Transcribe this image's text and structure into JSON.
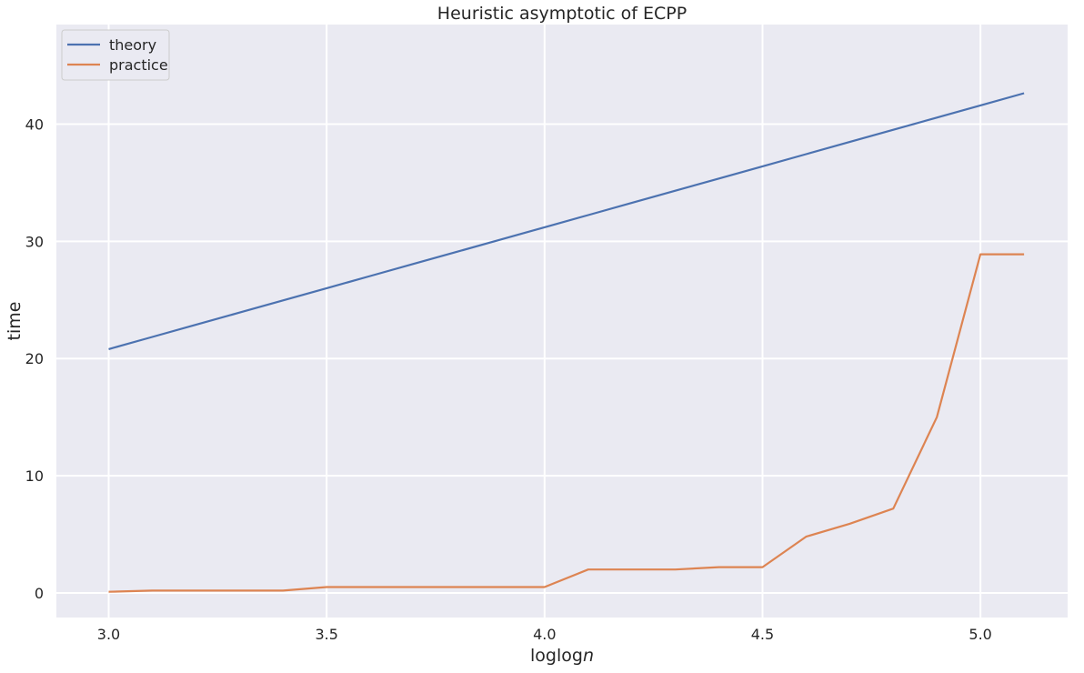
{
  "chart_data": {
    "type": "line",
    "title": "Heuristic asymptotic of ECPP",
    "xlabel": "loglog",
    "xlabel_italic": "n",
    "ylabel": "time",
    "xlim": [
      2.88,
      5.2
    ],
    "ylim": [
      -2.1,
      48.5
    ],
    "xticks": [
      3.0,
      3.5,
      4.0,
      4.5,
      5.0
    ],
    "xtick_labels": [
      "3.0",
      "3.5",
      "4.0",
      "4.5",
      "5.0"
    ],
    "yticks": [
      0,
      10,
      20,
      30,
      40
    ],
    "ytick_labels": [
      "0",
      "10",
      "20",
      "30",
      "40"
    ],
    "grid": true,
    "legend_position": "top-left",
    "background": "#eaeaf2",
    "grid_color": "#ffffff",
    "x": [
      3.0,
      3.1,
      3.2,
      3.3,
      3.4,
      3.5,
      3.6,
      3.7,
      3.8,
      3.9,
      4.0,
      4.1,
      4.2,
      4.3,
      4.4,
      4.5,
      4.6,
      4.7,
      4.8,
      4.9,
      5.0,
      5.1
    ],
    "series": [
      {
        "name": "theory",
        "color": "#4c72b0",
        "values": [
          20.8,
          21.84,
          22.88,
          23.92,
          24.96,
          26.0,
          27.04,
          28.08,
          29.12,
          30.16,
          31.2,
          32.24,
          33.28,
          34.32,
          35.36,
          36.4,
          37.44,
          38.48,
          39.52,
          40.56,
          41.6,
          42.64
        ]
      },
      {
        "name": "practice",
        "color": "#dd8452",
        "values": [
          0.1,
          0.2,
          0.2,
          0.2,
          0.2,
          0.5,
          0.5,
          0.5,
          0.5,
          0.5,
          0.5,
          2.0,
          2.0,
          2.0,
          2.2,
          2.2,
          4.8,
          5.9,
          7.2,
          15.0,
          28.9,
          28.9
        ]
      }
    ]
  }
}
